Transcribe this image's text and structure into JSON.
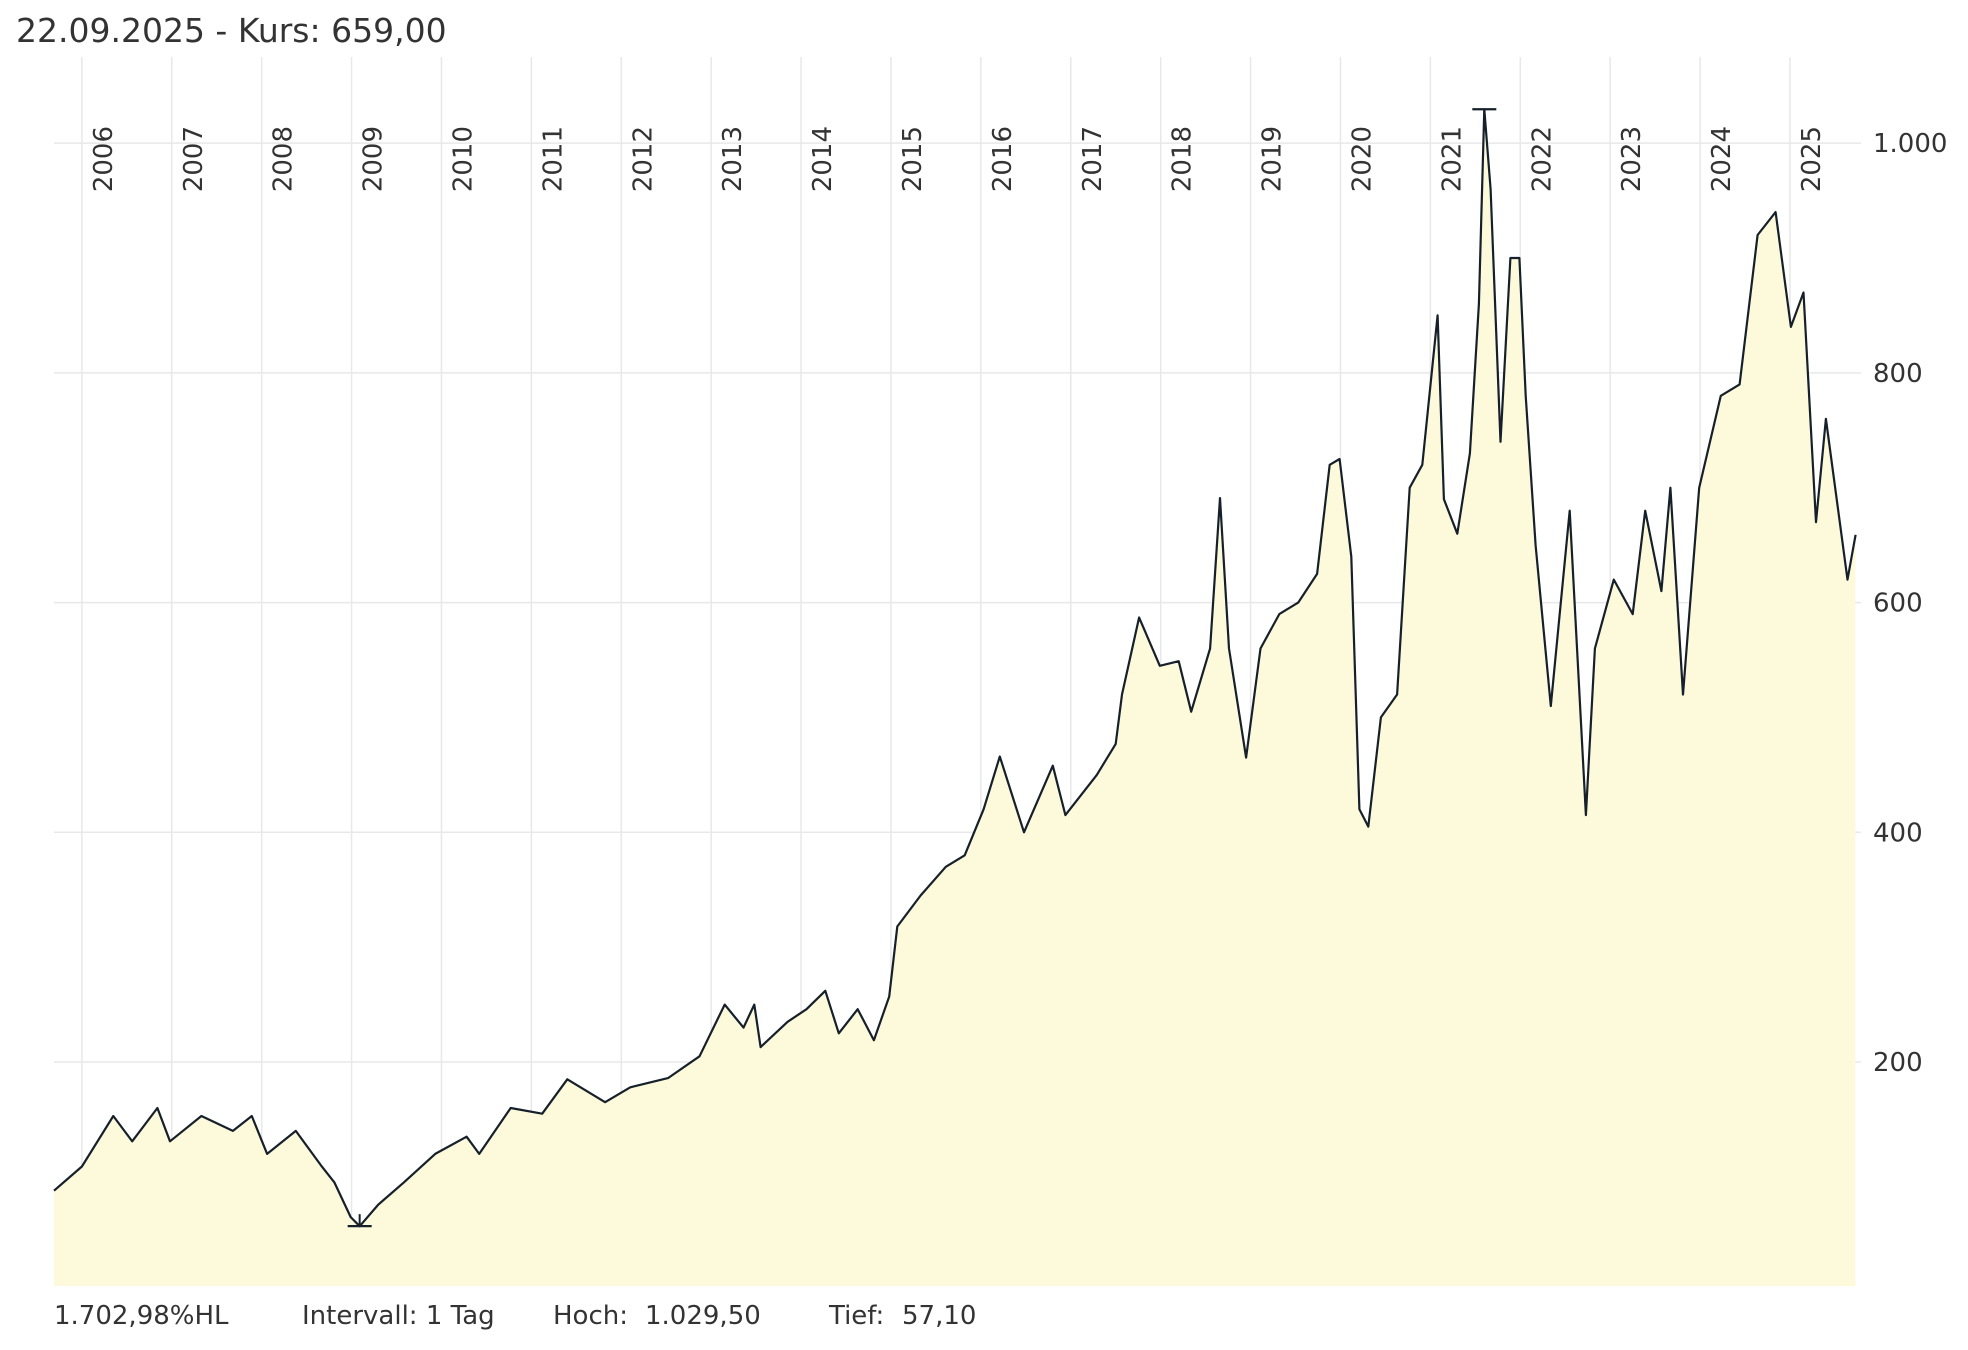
{
  "chart_data": {
    "type": "area",
    "title": "22.09.2025  - Kurs: 659,00",
    "x": [
      2005.69,
      2006.0,
      2006.35,
      2006.56,
      2006.84,
      2006.98,
      2007.33,
      2007.68,
      2007.89,
      2008.06,
      2008.38,
      2008.66,
      2008.81,
      2008.99,
      2009.09,
      2009.3,
      2009.58,
      2009.93,
      2010.28,
      2010.42,
      2010.77,
      2011.12,
      2011.4,
      2011.82,
      2012.1,
      2012.52,
      2012.87,
      2013.15,
      2013.36,
      2013.48,
      2013.55,
      2013.85,
      2014.06,
      2014.27,
      2014.42,
      2014.63,
      2014.81,
      2014.98,
      2015.07,
      2015.33,
      2015.61,
      2015.82,
      2016.03,
      2016.21,
      2016.48,
      2016.8,
      2016.94,
      2017.29,
      2017.5,
      2017.57,
      2017.76,
      2017.99,
      2018.2,
      2018.34,
      2018.55,
      2018.66,
      2018.76,
      2018.95,
      2019.11,
      2019.32,
      2019.53,
      2019.74,
      2019.88,
      2019.99,
      2020.12,
      2020.21,
      2020.31,
      2020.45,
      2020.63,
      2020.77,
      2020.91,
      2021.08,
      2021.15,
      2021.3,
      2021.44,
      2021.54,
      2021.6,
      2021.67,
      2021.78,
      2021.89,
      2021.99,
      2022.06,
      2022.17,
      2022.34,
      2022.55,
      2022.73,
      2022.83,
      2023.04,
      2023.25,
      2023.39,
      2023.57,
      2023.67,
      2023.81,
      2023.99,
      2024.23,
      2024.44,
      2024.64,
      2024.84,
      2025.01,
      2025.15,
      2025.29,
      2025.4,
      2025.64,
      2025.73
    ],
    "series": [
      {
        "name": "Kurs",
        "color": "#16202a",
        "fill": "#fdfadc",
        "values": [
          88,
          109,
          153,
          131,
          160,
          131,
          153,
          140,
          153,
          120,
          140,
          110,
          95,
          65,
          57.1,
          76,
          95,
          120,
          135,
          120,
          160,
          155,
          185,
          165,
          178,
          186,
          205,
          250,
          230,
          250,
          213,
          235,
          246,
          262,
          225,
          246,
          219,
          257,
          318,
          345,
          370,
          380,
          420,
          466,
          400,
          458,
          415,
          450,
          477,
          520,
          587,
          545,
          549,
          505,
          560,
          691,
          560,
          465,
          560,
          590,
          600,
          625,
          720,
          725,
          640,
          420,
          405,
          500,
          520,
          700,
          720,
          850,
          690,
          660,
          730,
          860,
          1029.5,
          960,
          740,
          900,
          900,
          780,
          650,
          510,
          680,
          415,
          560,
          620,
          590,
          680,
          610,
          700,
          520,
          700,
          780,
          790,
          920,
          940,
          840,
          870,
          670,
          760,
          620,
          659
        ]
      }
    ],
    "xlim": [
      2005.69,
      2025.79
    ],
    "xticks": [
      2006,
      2007,
      2008,
      2009,
      2010,
      2011,
      2012,
      2013,
      2014,
      2015,
      2016,
      2017,
      2018,
      2019,
      2020,
      2021,
      2022,
      2023,
      2024,
      2025
    ],
    "ylim": [
      5,
      1075
    ],
    "yticks": [
      200,
      400,
      600,
      800,
      {
        "value": 1000,
        "label": "1.000"
      }
    ],
    "grid": true,
    "footer": [
      "1.702,98%HL",
      "Intervall: 1 Tag"
    ],
    "stats": [
      {
        "label": "Hoch:",
        "value": 1029.5,
        "value_label": "1.029,50"
      },
      {
        "label": "Tief:",
        "value": 57.1,
        "value_label": "57,10"
      }
    ]
  }
}
